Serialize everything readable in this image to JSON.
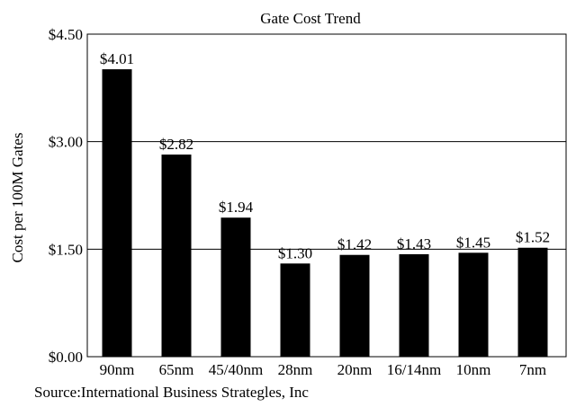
{
  "chart_data": {
    "type": "bar",
    "title": "Gate Cost Trend",
    "xlabel": "",
    "ylabel": "Cost per 100M Gates",
    "categories": [
      "90nm",
      "65nm",
      "45/40nm",
      "28nm",
      "20nm",
      "16/14nm",
      "10nm",
      "7nm"
    ],
    "values": [
      4.01,
      2.82,
      1.94,
      1.3,
      1.42,
      1.43,
      1.45,
      1.52
    ],
    "data_labels": [
      "$4.01",
      "$2.82",
      "$1.94",
      "$1.30",
      "$1.42",
      "$1.43",
      "$1.45",
      "$1.52"
    ],
    "yticks": [
      0,
      1.5,
      3.0,
      4.5
    ],
    "ytick_labels": [
      "$0.00",
      "$1.50",
      "$3.00",
      "$4.50"
    ],
    "ylim": [
      0,
      4.5
    ],
    "grid": "horizontal",
    "legend": "none",
    "bar_color": "#000000"
  },
  "source": "Source:International Business Strategles, Inc"
}
